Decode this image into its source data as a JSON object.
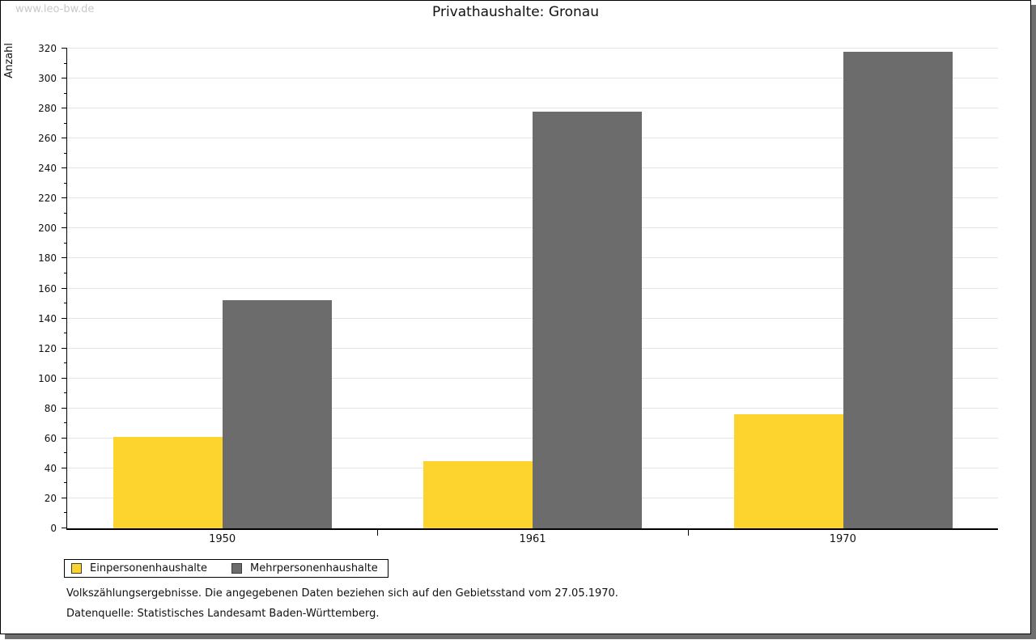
{
  "watermark": "www.leo-bw.de",
  "chart_data": {
    "type": "bar",
    "title": "Privathaushalte: Gronau",
    "xlabel": "",
    "ylabel": "Anzahl",
    "categories": [
      "1950",
      "1961",
      "1970"
    ],
    "series": [
      {
        "name": "Einpersonenhaushalte",
        "color": "#fdd42d",
        "values": [
          61,
          45,
          76
        ]
      },
      {
        "name": "Mehrpersonenhaushalte",
        "color": "#6c6c6c",
        "values": [
          152,
          278,
          318
        ]
      }
    ],
    "ylim": [
      0,
      320
    ],
    "y_major_step": 20,
    "y_minor_step": 10,
    "grid": true,
    "legend_position": "bottom-left"
  },
  "footnotes": {
    "line1": "Volkszählungsergebnisse. Die angegebenen Daten beziehen sich auf den Gebietsstand vom 27.05.1970.",
    "line2": "Datenquelle: Statistisches Landesamt Baden-Württemberg."
  }
}
